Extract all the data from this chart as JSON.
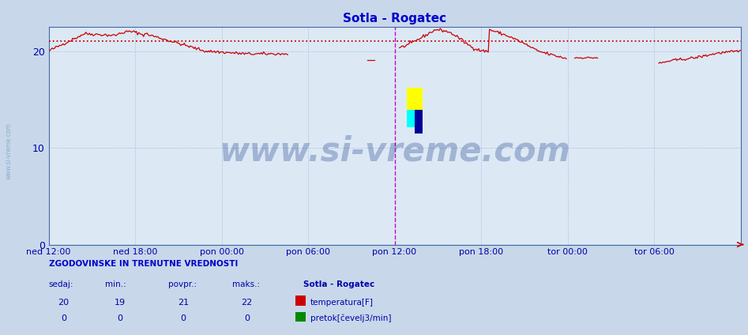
{
  "title": "Sotla - Rogatec",
  "title_color": "#0000cc",
  "plot_bg_color": "#dce9f5",
  "fig_bg_color": "#c8d8ea",
  "grid_color": "#aabbdd",
  "ylim": [
    0,
    22.5
  ],
  "yticks": [
    0,
    10,
    20
  ],
  "tick_color": "#0000aa",
  "xtick_labels": [
    "ned 12:00",
    "ned 18:00",
    "pon 00:00",
    "pon 06:00",
    "pon 12:00",
    "pon 18:00",
    "tor 00:00",
    "tor 06:00"
  ],
  "xtick_positions": [
    0,
    72,
    144,
    216,
    288,
    360,
    432,
    504
  ],
  "n_points": 577,
  "avg_line_value": 21.0,
  "avg_line_color": "#cc0000",
  "vline_pos": 288,
  "vline_color": "#cc00cc",
  "temp_line_color": "#cc0000",
  "flow_line_color": "#008800",
  "watermark_text": "www.si-vreme.com",
  "watermark_color": "#1a3a8a",
  "watermark_alpha": 0.3,
  "watermark_fontsize": 30,
  "stat_header": "ZGODOVINSKE IN TRENUTNE VREDNOSTI",
  "stat_cols": [
    "sedaj:",
    "min.:",
    "povpr.:",
    "maks.:"
  ],
  "stat_vals_temp": [
    20,
    19,
    21,
    22
  ],
  "stat_vals_flow": [
    0,
    0,
    0,
    0
  ],
  "stat_label1": "temperatura[F]",
  "stat_label2": "pretok[čevelj3/min]",
  "stat_color1": "#cc0000",
  "stat_color2": "#008800",
  "station_label": "Sotla - Rogatec",
  "left_label": "www.si-vreme.com",
  "left_label_color": "#7799bb",
  "spine_color": "#4466aa",
  "arrow_color": "#cc0000"
}
